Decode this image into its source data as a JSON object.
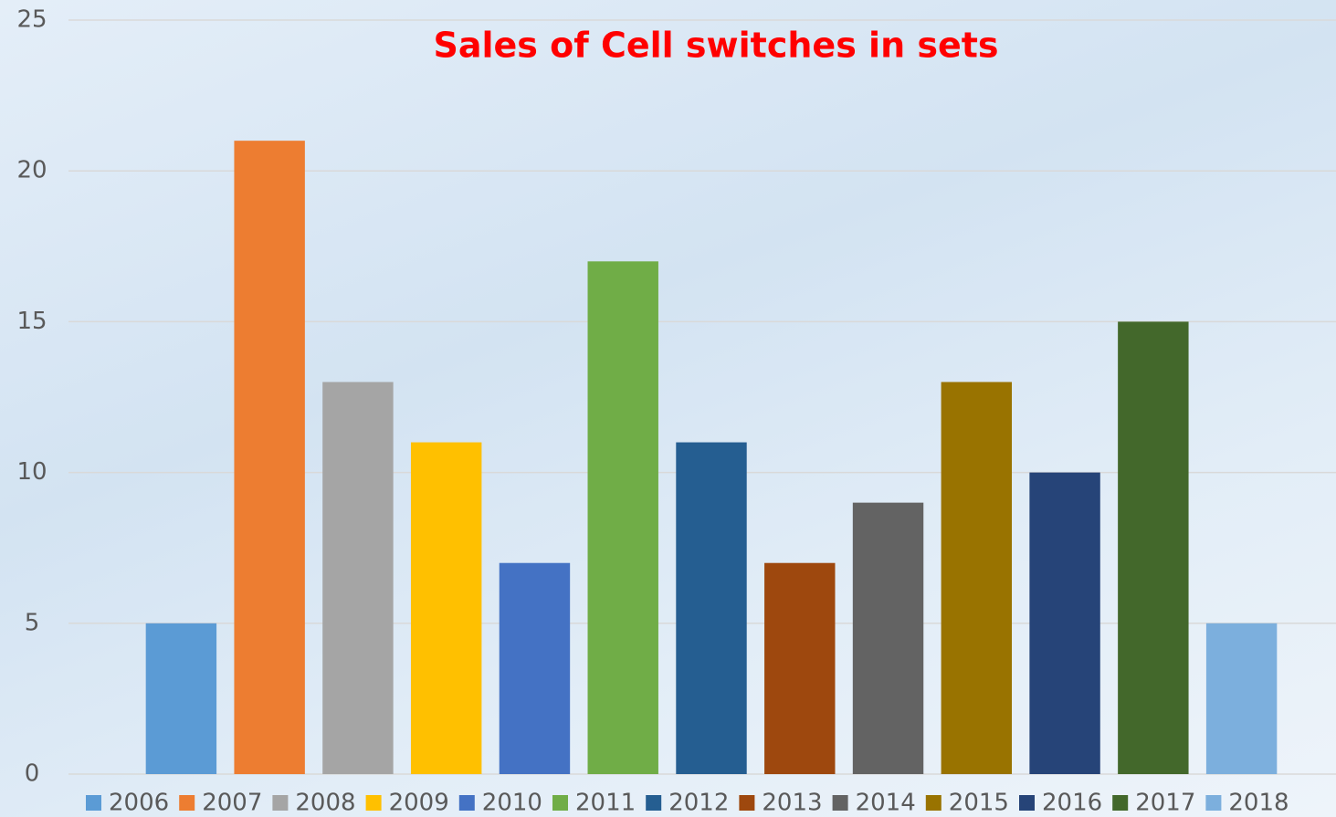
{
  "chart_data": {
    "type": "bar",
    "title": "Sales of Cell switches in sets",
    "categories": [
      "2006",
      "2007",
      "2008",
      "2009",
      "2010",
      "2011",
      "2012",
      "2013",
      "2014",
      "2015",
      "2016",
      "2017",
      "2018"
    ],
    "values": [
      5,
      21,
      13,
      11,
      7,
      17,
      11,
      7,
      9,
      13,
      10,
      15,
      5
    ],
    "colors": [
      "#5b9bd5",
      "#ed7d31",
      "#a5a5a5",
      "#ffc000",
      "#4472c4",
      "#70ad47",
      "#255e91",
      "#9e480e",
      "#636363",
      "#997300",
      "#264478",
      "#43682b",
      "#7cafdd"
    ],
    "ylim": [
      0,
      25
    ],
    "yticks": [
      0,
      5,
      10,
      15,
      20,
      25
    ],
    "grid": true,
    "legend": "bottom"
  }
}
